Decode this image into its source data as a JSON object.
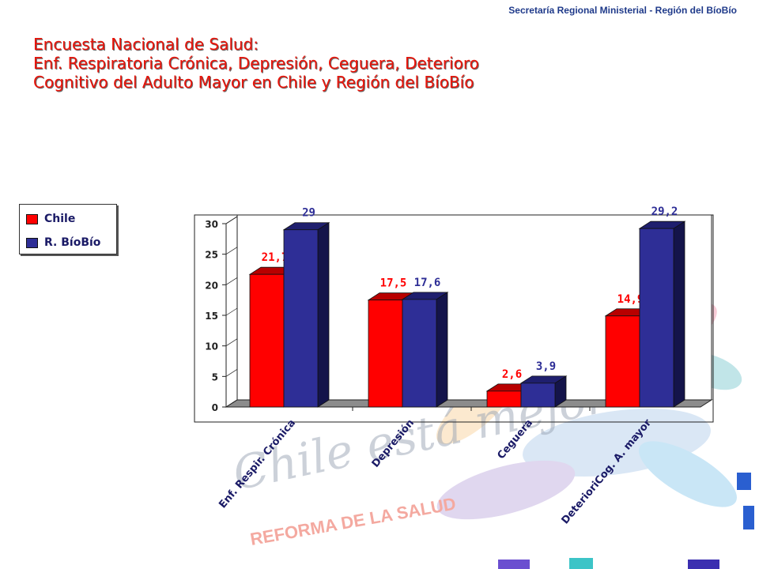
{
  "header": {
    "text": "Secretaría Regional Ministerial - Región del BíoBío"
  },
  "title": {
    "lines": [
      "Encuesta Nacional de Salud:",
      "Enf. Respiratoria Crónica, Depresión, Ceguera, Deterioro",
      "Cognitivo del Adulto Mayor en Chile y Región del BíoBío"
    ]
  },
  "watermark": {
    "logo_text": "Chile está mejor",
    "tagline": "REFORMA DE LA SALUD"
  },
  "colors": {
    "chile": "#ff0000",
    "biobio": "#2e2e96",
    "title": "#e8140a",
    "header": "#1f3a8a"
  },
  "chart_data": {
    "type": "bar",
    "categories": [
      "Enf. Respir. Crónica",
      "Depresión",
      "Ceguera",
      "DeterioriCog. A. mayor"
    ],
    "series": [
      {
        "name": "Chile",
        "values": [
          21.7,
          17.5,
          2.6,
          14.9
        ],
        "labels": [
          "21,7",
          "17,5",
          "2,6",
          "14,9"
        ]
      },
      {
        "name": "R. BíoBío",
        "values": [
          29,
          17.6,
          3.9,
          29.2
        ],
        "labels": [
          "29",
          "17,6",
          "3,9",
          "29,2"
        ]
      }
    ],
    "yticks": [
      "0",
      "5",
      "10",
      "15",
      "20",
      "25",
      "30"
    ],
    "ylim": [
      0,
      30
    ],
    "legend": "left",
    "grid": false,
    "three_d": true
  }
}
